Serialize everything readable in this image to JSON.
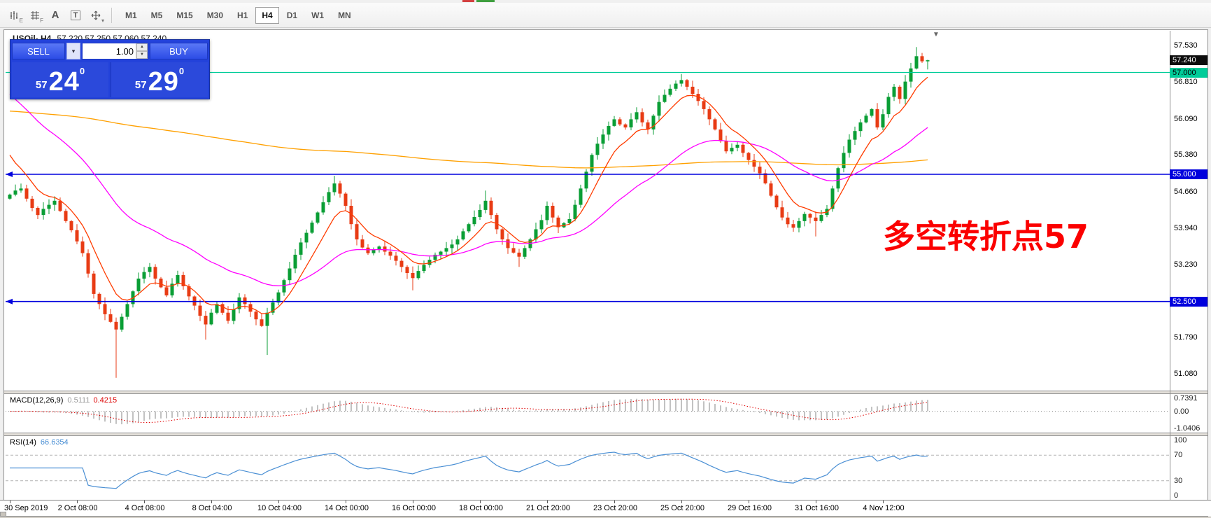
{
  "toolbar": {
    "icons": [
      {
        "name": "bar-chart-icon",
        "sub": "E"
      },
      {
        "name": "grid-icon",
        "sub": "F"
      },
      {
        "name": "font-icon",
        "glyph": "A"
      },
      {
        "name": "text-box-icon",
        "glyph": "T"
      },
      {
        "name": "cursor-move-icon"
      },
      {
        "name": "dropdown-caret-icon",
        "glyph": "▾"
      }
    ],
    "timeframes": [
      "M1",
      "M5",
      "M15",
      "M30",
      "H1",
      "H4",
      "D1",
      "W1",
      "MN"
    ],
    "active_timeframe": "H4"
  },
  "chart_header": {
    "symbol": "USOil-,H4",
    "values": "57.220 57.250 57.060 57.240"
  },
  "trade_panel": {
    "sell_label": "SELL",
    "buy_label": "BUY",
    "volume": "1.00",
    "sell_price": {
      "prefix": "57",
      "big": "24",
      "sup": "0"
    },
    "buy_price": {
      "prefix": "57",
      "big": "29",
      "sup": "0"
    }
  },
  "annotation": {
    "text": "多空转折点57",
    "color": "#fb0000"
  },
  "price_scale": {
    "ticks": [
      {
        "text": "57.530",
        "value": 57.53
      },
      {
        "text": "56.810",
        "value": 56.81
      },
      {
        "text": "56.090",
        "value": 56.09
      },
      {
        "text": "55.380",
        "value": 55.38
      },
      {
        "text": "54.660",
        "value": 54.66
      },
      {
        "text": "53.940",
        "value": 53.94
      },
      {
        "text": "53.230",
        "value": 53.23
      },
      {
        "text": "52.510",
        "value": 52.51
      },
      {
        "text": "51.790",
        "value": 51.79
      },
      {
        "text": "51.080",
        "value": 51.08
      }
    ],
    "markers": [
      {
        "text": "57.240",
        "value": 57.24,
        "bg": "#0d0d0d",
        "fg": "#ffffff",
        "name": "current-price"
      },
      {
        "text": "57.000",
        "value": 57.0,
        "bg": "#00cc99",
        "fg": "#000000",
        "name": "hline-57000"
      },
      {
        "text": "55.000",
        "value": 55.0,
        "bg": "#0000dd",
        "fg": "#ffffff",
        "name": "hline-55000"
      },
      {
        "text": "52.500",
        "value": 52.5,
        "bg": "#0000dd",
        "fg": "#ffffff",
        "name": "hline-52500"
      }
    ]
  },
  "macd_panel": {
    "title": "MACD(12,26,9)",
    "value_main": "0.5111",
    "value_signal": "0.4215",
    "axis": [
      {
        "text": "0.7391",
        "value": 0.7391
      },
      {
        "text": "0.00",
        "value": 0
      },
      {
        "text": "-1.0406",
        "value": -1.0406
      }
    ],
    "range": [
      -1.05,
      0.85
    ]
  },
  "rsi_panel": {
    "title": "RSI(14)",
    "value": "66.6354",
    "axis": [
      {
        "text": "100",
        "value": 100
      },
      {
        "text": "70",
        "value": 70
      },
      {
        "text": "30",
        "value": 30
      },
      {
        "text": "0",
        "value": 0
      }
    ],
    "levels": [
      70,
      30
    ],
    "range": [
      0,
      100
    ]
  },
  "chart_data": {
    "type": "candlestick",
    "symbol": "USOil-",
    "timeframe": "H4",
    "title": "USOil-,H4",
    "last_ohlc": {
      "open": 57.22,
      "high": 57.25,
      "low": 57.06,
      "close": 57.24
    },
    "y_min": 51.08,
    "y_max": 57.53,
    "up_color": "#0a9e35",
    "down_color": "#e83b14",
    "first_open": 54.52,
    "closes": [
      54.6,
      54.68,
      54.72,
      54.52,
      54.34,
      54.2,
      54.32,
      54.4,
      54.48,
      54.28,
      54.08,
      53.9,
      53.68,
      53.45,
      53.05,
      52.65,
      52.45,
      52.25,
      52.1,
      51.95,
      52.2,
      52.45,
      52.7,
      52.95,
      53.08,
      53.18,
      52.95,
      52.78,
      52.62,
      52.85,
      53.02,
      52.8,
      52.6,
      52.42,
      52.22,
      52.05,
      52.28,
      52.45,
      52.28,
      52.12,
      52.35,
      52.58,
      52.45,
      52.3,
      52.15,
      52.02,
      52.28,
      52.48,
      52.68,
      52.92,
      53.15,
      53.42,
      53.66,
      53.85,
      54.05,
      54.25,
      54.45,
      54.65,
      54.82,
      54.62,
      54.38,
      54.02,
      53.72,
      53.56,
      53.45,
      53.52,
      53.58,
      53.48,
      53.4,
      53.3,
      53.18,
      53.06,
      52.96,
      53.1,
      53.22,
      53.32,
      53.42,
      53.48,
      53.55,
      53.62,
      53.72,
      53.88,
      54.02,
      54.16,
      54.3,
      54.48,
      54.2,
      53.92,
      53.72,
      53.55,
      53.46,
      53.38,
      53.55,
      53.72,
      53.92,
      54.1,
      54.38,
      54.15,
      53.96,
      54.04,
      54.12,
      54.4,
      54.72,
      55.05,
      55.38,
      55.6,
      55.78,
      55.95,
      56.08,
      55.98,
      55.92,
      56.08,
      56.22,
      56.02,
      55.88,
      56.15,
      56.42,
      56.56,
      56.68,
      56.78,
      56.85,
      56.72,
      56.58,
      56.44,
      56.28,
      56.08,
      55.88,
      55.65,
      55.45,
      55.52,
      55.58,
      55.42,
      55.28,
      55.15,
      55.02,
      54.82,
      54.58,
      54.35,
      54.15,
      54.02,
      53.95,
      54.08,
      54.22,
      54.15,
      54.08,
      54.2,
      54.32,
      54.72,
      55.12,
      55.42,
      55.68,
      55.85,
      56.02,
      56.15,
      56.28,
      55.92,
      56.18,
      56.52,
      56.72,
      56.48,
      56.82,
      57.08,
      57.32,
      57.22,
      57.24
    ],
    "wick_lows": {
      "19": 51.0,
      "35": 51.75,
      "46": 51.45,
      "72": 52.72,
      "91": 53.18,
      "144": 53.78,
      "164": 57.06
    },
    "wick_highs": {
      "58": 54.97,
      "85": 54.68,
      "120": 56.97,
      "162": 57.5,
      "164": 57.25
    },
    "ma": [
      {
        "name": "ma-slow",
        "color": "#ffa000",
        "period": 400,
        "seed": 56.25
      },
      {
        "name": "ma-mid",
        "color": "#ff00ff",
        "period": 34,
        "seed": 56.7
      },
      {
        "name": "ma-fast",
        "color": "#ff3c00",
        "period": 8,
        "seed": 55.6
      }
    ],
    "hlines": [
      {
        "value": "57.000",
        "price": 57.0,
        "color": "#00cc99",
        "width": 1.3,
        "arrow": false
      },
      {
        "value": "55.000",
        "price": 55.0,
        "color": "#0000dd",
        "width": 1.6,
        "arrow": true
      },
      {
        "value": "52.500",
        "price": 52.5,
        "color": "#0000dd",
        "width": 1.6,
        "arrow": true
      }
    ],
    "macd": {
      "fast": 12,
      "slow": 26,
      "signal": 9,
      "histogram_color": "#b2b2b2",
      "signal_color": "#e00000"
    },
    "rsi": {
      "period": 14,
      "color": "#4a8fd4"
    },
    "x_labels": [
      {
        "text": "30 Sep 2019",
        "i": 0
      },
      {
        "text": "2 Oct 08:00",
        "i": 12
      },
      {
        "text": "4 Oct 08:00",
        "i": 24
      },
      {
        "text": "8 Oct 04:00",
        "i": 36
      },
      {
        "text": "10 Oct 04:00",
        "i": 48
      },
      {
        "text": "14 Oct 00:00",
        "i": 60
      },
      {
        "text": "16 Oct 00:00",
        "i": 72
      },
      {
        "text": "18 Oct 00:00",
        "i": 84
      },
      {
        "text": "21 Oct 20:00",
        "i": 96
      },
      {
        "text": "23 Oct 20:00",
        "i": 108
      },
      {
        "text": "25 Oct 20:00",
        "i": 120
      },
      {
        "text": "29 Oct 16:00",
        "i": 132
      },
      {
        "text": "31 Oct 16:00",
        "i": 144
      },
      {
        "text": "4 Nov 12:00",
        "i": 156
      }
    ]
  }
}
